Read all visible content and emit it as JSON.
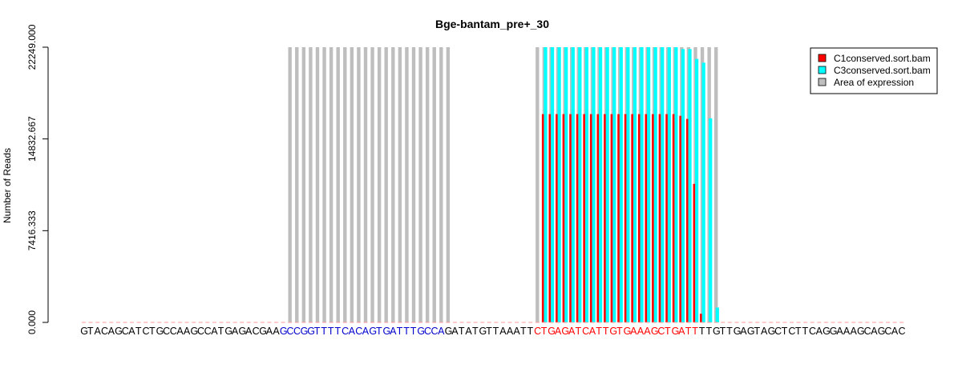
{
  "chart_data": {
    "type": "bar",
    "title": "Bge-bantam_pre+_30",
    "ylabel": "Number of Reads",
    "xlabel": "",
    "ylim": [
      0,
      22249
    ],
    "yticks": [
      "0.000",
      "7416.333",
      "14832.667",
      "22249.000"
    ],
    "ytick_values": [
      0,
      7416.333,
      14832.667,
      22249
    ],
    "sequence": "GTACAGCATCTGCCAAGCCATGAGACGAAGCCGGTTTTCACAGTGATTTGCCAGATATGTTAAATTCTGAGATCATTGTGAAAGCTGATTTTGTTGAGTAGCTCTTCAGGAAAGCAGCAC",
    "sequence_segments": [
      {
        "text": "GTACAGCATCTGCCAAGCCATGAGACGAA",
        "color": "#000000",
        "start": 0
      },
      {
        "text": "GCCGGTTTTCACAGTGATTTGCCA",
        "color": "#0000cd",
        "start": 29
      },
      {
        "text": "GATATGTTAAATT",
        "color": "#000000",
        "start": 53
      },
      {
        "text": "CTGAGATCATTGTGAAAGCTGATT",
        "color": "#ff0000",
        "start": 66
      },
      {
        "text": "TTGTTGAGTAGCTCTTCAGGAAAGCAGCAC",
        "color": "#000000",
        "start": 90
      }
    ],
    "expression_areas": [
      [
        30,
        53
      ],
      [
        66,
        92
      ]
    ],
    "series": [
      {
        "name": "C1conserved.sort.bam",
        "color": "#ff0000",
        "start": 67,
        "values": [
          16840,
          16840,
          16840,
          16840,
          16840,
          16840,
          16840,
          16840,
          16840,
          16840,
          16840,
          16840,
          16840,
          16840,
          16840,
          16840,
          16840,
          16840,
          16840,
          16840,
          16700,
          16450,
          11200,
          700
        ]
      },
      {
        "name": "C3conserved.sort.bam",
        "color": "#00ffff",
        "start": 67,
        "values": [
          22249,
          22249,
          22249,
          22249,
          22249,
          22249,
          22249,
          22249,
          22249,
          22249,
          22249,
          22249,
          22249,
          22249,
          22249,
          22249,
          22249,
          22249,
          22249,
          22249,
          22100,
          22100,
          21300,
          21000,
          16500,
          1200
        ]
      }
    ],
    "legend": {
      "position": "top-right",
      "entries": [
        {
          "label": "C1conserved.sort.bam",
          "color": "#ff0000"
        },
        {
          "label": "C3conserved.sort.bam",
          "color": "#00ffff"
        },
        {
          "label": "Area of expression",
          "color": "#bebebe"
        }
      ]
    },
    "expression_color": "#bebebe",
    "grid": false
  }
}
